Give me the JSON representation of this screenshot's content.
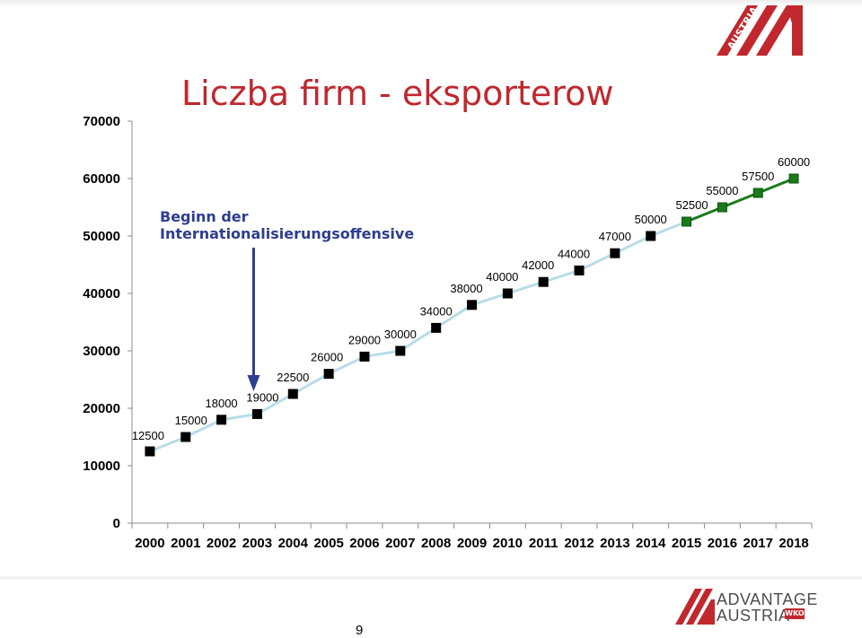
{
  "slide": {
    "title": "Liczba firm - eksporterow",
    "page_number": "9",
    "annotation_line1": "Beginn der",
    "annotation_line2": "Internationalisierungsoffensive"
  },
  "logos": {
    "top_right_text": "AUSTRIA",
    "bottom_right_line1": "ADVANTAGE",
    "bottom_right_line2": "AUSTRIA",
    "bottom_right_badge": "WKO"
  },
  "colors": {
    "title": "#c0282e",
    "annotation": "#2e3d8f",
    "actual_markers": "#000000",
    "projection_markers": "#1a7a1a",
    "connector_line": "#b7dde6",
    "projection_line": "#1a7a1a",
    "brand_red": "#c0282e"
  },
  "chart_data": {
    "type": "line",
    "categories": [
      "2000",
      "2001",
      "2002",
      "2003",
      "2004",
      "2005",
      "2006",
      "2007",
      "2008",
      "2009",
      "2010",
      "2011",
      "2012",
      "2013",
      "2014",
      "2015",
      "2016",
      "2017",
      "2018"
    ],
    "series": [
      {
        "style": "actual",
        "values": [
          12500,
          15000,
          18000,
          19000,
          22500,
          26000,
          29000,
          30000,
          34000,
          38000,
          40000,
          42000,
          44000,
          47000,
          50000,
          null,
          null,
          null,
          null
        ]
      },
      {
        "style": "projection",
        "values": [
          null,
          null,
          null,
          null,
          null,
          null,
          null,
          null,
          null,
          null,
          null,
          null,
          null,
          null,
          null,
          52500,
          55000,
          57500,
          60000
        ]
      }
    ],
    "data_labels": [
      "12500",
      "15000",
      "18000",
      "19000",
      "22500",
      "26000",
      "29000",
      "30000",
      "34000",
      "38000",
      "40000",
      "42000",
      "44000",
      "47000",
      "50000",
      "52500",
      "55000",
      "57500",
      "60000"
    ],
    "y_ticks": [
      "0",
      "10000",
      "20000",
      "30000",
      "40000",
      "50000",
      "60000",
      "70000"
    ],
    "ylim": [
      0,
      70000
    ],
    "grid": false,
    "annotation": {
      "year": "2003",
      "text": "Beginn der Internationalisierungsoffensive"
    }
  }
}
